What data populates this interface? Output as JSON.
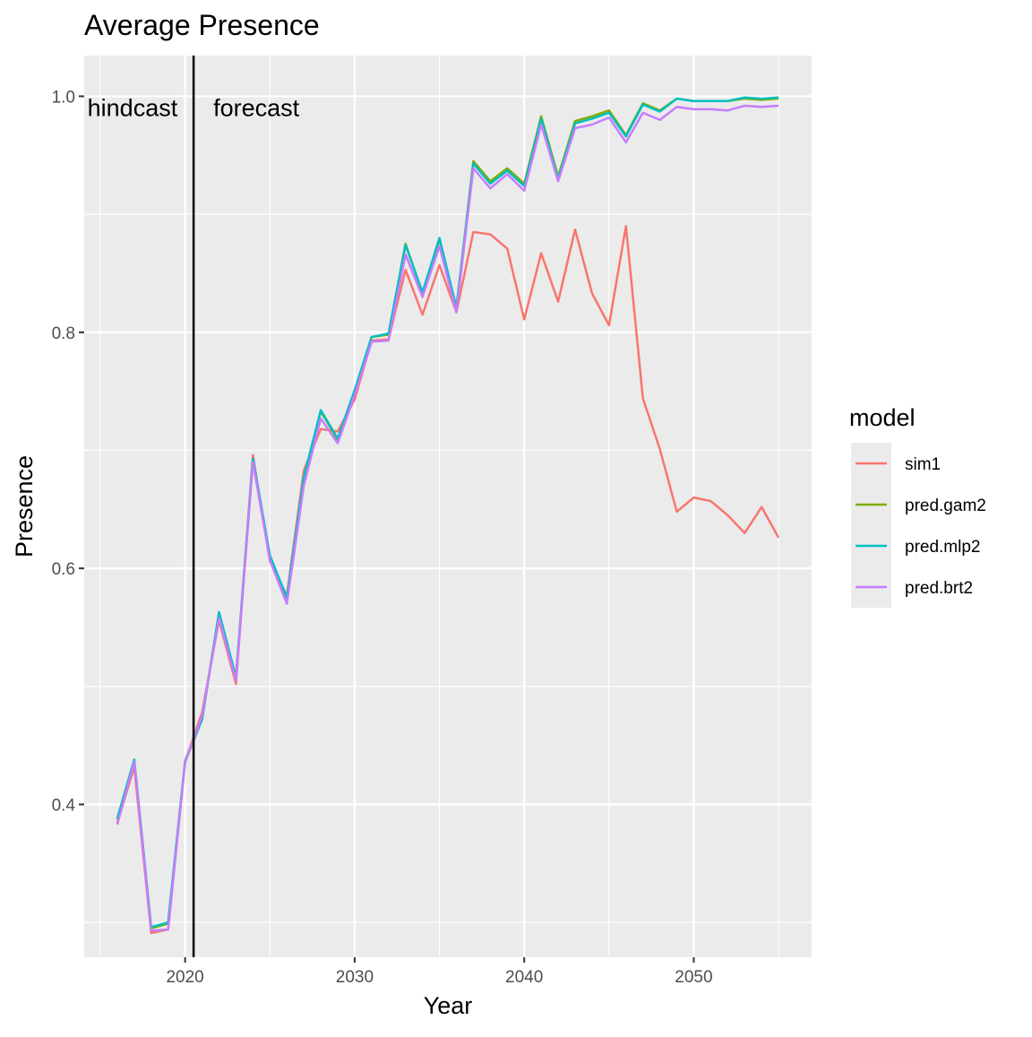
{
  "chart_data": {
    "type": "line",
    "title": "Average Presence",
    "xlabel": "Year",
    "ylabel": "Presence",
    "xlim": [
      2014.05,
      2056.95
    ],
    "ylim": [
      0.2705,
      1.0345
    ],
    "x_ticks": [
      2020,
      2030,
      2040,
      2050
    ],
    "y_ticks": [
      0.4,
      0.6,
      0.8,
      1.0
    ],
    "y_tick_labels": [
      "0.4",
      "0.6",
      "0.8",
      "1.0"
    ],
    "grid": true,
    "legend": {
      "title": "model",
      "position": "right"
    },
    "vline": {
      "x": 2020.5
    },
    "annotations": [
      {
        "text": "hindcast",
        "x": 2016.9,
        "y": 0.99
      },
      {
        "text": "forecast",
        "x": 2024.2,
        "y": 0.99
      }
    ],
    "x": [
      2016,
      2017,
      2018,
      2019,
      2020,
      2021,
      2022,
      2023,
      2024,
      2025,
      2026,
      2027,
      2028,
      2029,
      2030,
      2031,
      2032,
      2033,
      2034,
      2035,
      2036,
      2037,
      2038,
      2039,
      2040,
      2041,
      2042,
      2043,
      2044,
      2045,
      2046,
      2047,
      2048,
      2049,
      2050,
      2051,
      2052,
      2053,
      2054,
      2055
    ],
    "series": [
      {
        "name": "sim1",
        "color": "#F8766D",
        "values": [
          0.384,
          0.432,
          0.291,
          0.294,
          0.436,
          0.478,
          0.556,
          0.502,
          0.696,
          0.606,
          0.577,
          0.683,
          0.718,
          0.716,
          0.743,
          0.793,
          0.794,
          0.853,
          0.815,
          0.857,
          0.817,
          0.885,
          0.883,
          0.871,
          0.811,
          0.867,
          0.826,
          0.887,
          0.833,
          0.806,
          0.89,
          0.744,
          0.701,
          0.648,
          0.66,
          0.657,
          0.645,
          0.63,
          0.652,
          0.626
        ]
      },
      {
        "name": "pred.gam2",
        "color": "#7CAE00",
        "values": [
          0.387,
          0.437,
          0.295,
          0.299,
          0.436,
          0.472,
          0.562,
          0.507,
          0.692,
          0.61,
          0.574,
          0.677,
          0.733,
          0.709,
          0.75,
          0.796,
          0.798,
          0.875,
          0.833,
          0.879,
          0.82,
          0.945,
          0.928,
          0.939,
          0.926,
          0.983,
          0.932,
          0.979,
          0.983,
          0.988,
          0.967,
          0.994,
          0.988,
          0.998,
          0.996,
          0.996,
          0.996,
          0.998,
          0.997,
          0.998
        ]
      },
      {
        "name": "pred.mlp2",
        "color": "#00BFC4",
        "values": [
          0.388,
          0.438,
          0.296,
          0.3,
          0.437,
          0.472,
          0.563,
          0.508,
          0.693,
          0.611,
          0.575,
          0.677,
          0.734,
          0.71,
          0.751,
          0.796,
          0.799,
          0.874,
          0.834,
          0.88,
          0.821,
          0.943,
          0.926,
          0.937,
          0.924,
          0.981,
          0.93,
          0.977,
          0.981,
          0.986,
          0.966,
          0.993,
          0.987,
          0.998,
          0.996,
          0.996,
          0.996,
          0.999,
          0.998,
          0.999
        ]
      },
      {
        "name": "pred.brt2",
        "color": "#C77CFF",
        "values": [
          0.383,
          0.436,
          0.293,
          0.294,
          0.436,
          0.475,
          0.558,
          0.505,
          0.69,
          0.607,
          0.57,
          0.67,
          0.727,
          0.706,
          0.747,
          0.792,
          0.793,
          0.866,
          0.83,
          0.873,
          0.817,
          0.939,
          0.922,
          0.934,
          0.92,
          0.976,
          0.928,
          0.973,
          0.976,
          0.982,
          0.961,
          0.986,
          0.98,
          0.991,
          0.989,
          0.989,
          0.988,
          0.992,
          0.991,
          0.992
        ]
      }
    ]
  }
}
